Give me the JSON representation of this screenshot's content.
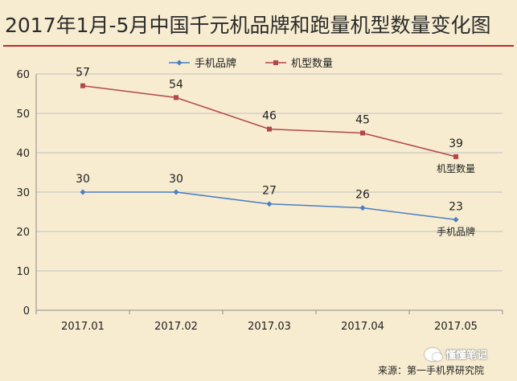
{
  "title": "2017年1月-5月中国千元机品牌和跑量机型数量变化图",
  "source_credit": "来源：第一手机界研究院",
  "watermark": "懂懂笔记",
  "colors": {
    "background": "#f7ecd0",
    "title_rule": "#c0282d",
    "series_brands": "#4a7ec4",
    "series_models": "#b3474b",
    "axis": "#8c8c8c",
    "grid": "#bfbfbf"
  },
  "chart_data": {
    "type": "line",
    "categories": [
      "2017.01",
      "2017.02",
      "2017.03",
      "2017.04",
      "2017.05"
    ],
    "series": [
      {
        "name": "手机品牌",
        "values": [
          30,
          30,
          27,
          26,
          23
        ],
        "color": "#4a7ec4",
        "marker": "diamond",
        "end_label": "手机品牌"
      },
      {
        "name": "机型数量",
        "values": [
          57,
          54,
          46,
          45,
          39
        ],
        "color": "#b3474b",
        "marker": "square",
        "end_label": "机型数量"
      }
    ],
    "ylim": [
      0,
      60
    ],
    "yticks": [
      0,
      10,
      20,
      30,
      40,
      50,
      60
    ],
    "grid": true,
    "legend_position": "top-center",
    "data_labels": true
  }
}
